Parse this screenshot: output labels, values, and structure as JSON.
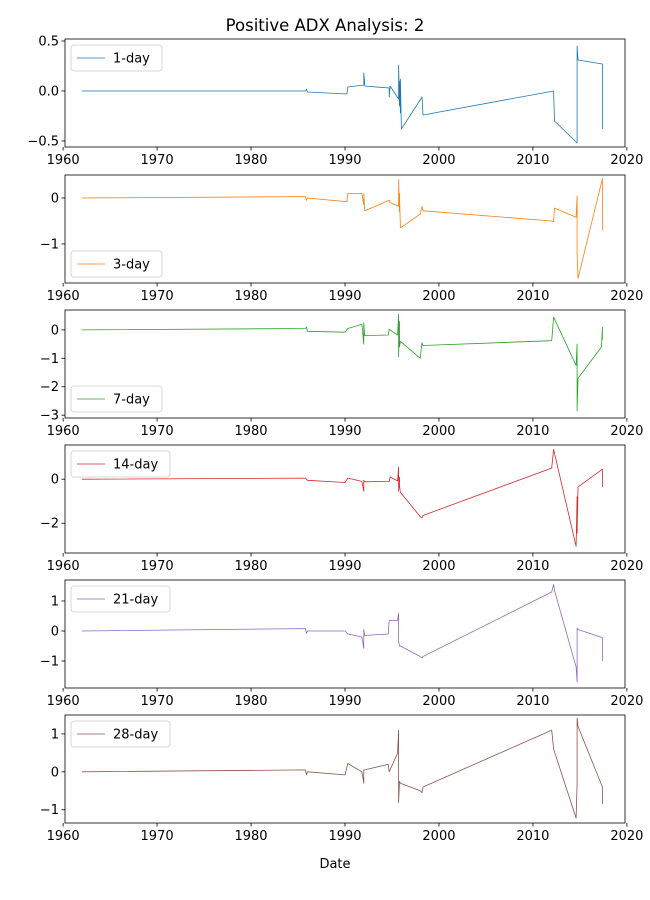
{
  "title": "Positive ADX Analysis: 2",
  "xlabel": "Date",
  "chart_data": [
    {
      "type": "line",
      "series": [
        {
          "name": "1-day",
          "color": "#1f77b4",
          "x": [
            1962.0,
            1985.8,
            1985.9,
            1986.0,
            1990.2,
            1990.3,
            1992.0,
            1992.0,
            1992.1,
            1992.1,
            1994.7,
            1994.7,
            1994.8,
            1995.7,
            1995.7,
            1995.8,
            1995.8,
            1995.9,
            1995.9,
            1996.0,
            1998.2,
            1998.3,
            2012.2,
            2012.3,
            2014.7,
            2014.7,
            2014.8,
            2017.4,
            2017.4
          ],
          "y": [
            0.0,
            0.0,
            0.02,
            -0.01,
            -0.03,
            0.04,
            0.06,
            0.18,
            0.08,
            0.05,
            0.03,
            -0.06,
            0.05,
            -0.08,
            0.26,
            -0.15,
            0.1,
            -0.22,
            0.12,
            -0.38,
            -0.06,
            -0.24,
            0.0,
            -0.3,
            -0.52,
            0.45,
            0.31,
            0.27,
            -0.38
          ]
        }
      ],
      "ylim": [
        -0.56,
        0.52
      ],
      "yticks": [
        0.5,
        0.0,
        -0.5
      ],
      "yticklabels": [
        "0.5",
        "0.0",
        "−0.5"
      ],
      "xlim": [
        1960.2,
        2019.8
      ],
      "xticks": [
        1960,
        1970,
        1980,
        1990,
        2000,
        2010,
        2020
      ],
      "xticklabels": [
        "1960",
        "1970",
        "1980",
        "1990",
        "2000",
        "2010",
        "2020"
      ],
      "legend_loc": "upper left"
    },
    {
      "type": "line",
      "series": [
        {
          "name": "3-day",
          "color": "#ff7f0e",
          "x": [
            1962.0,
            1985.8,
            1985.9,
            1986.0,
            1990.2,
            1990.3,
            1991.8,
            1992.0,
            1992.0,
            1992.1,
            1994.7,
            1994.8,
            1995.7,
            1995.7,
            1995.8,
            1995.8,
            1995.9,
            1998.0,
            1998.2,
            1998.3,
            2012.0,
            2012.2,
            2012.3,
            2014.6,
            2014.7,
            2014.7,
            2014.8,
            2017.4,
            2017.4
          ],
          "y": [
            0.0,
            0.03,
            -0.05,
            0.0,
            -0.08,
            0.1,
            0.1,
            -0.15,
            0.1,
            -0.28,
            -0.05,
            -0.1,
            -0.18,
            0.4,
            -0.3,
            0.1,
            -0.65,
            -0.35,
            -0.18,
            -0.28,
            -0.5,
            -0.52,
            -0.22,
            -0.42,
            0.05,
            -1.2,
            -1.75,
            0.42,
            -0.7
          ]
        }
      ],
      "ylim": [
        -1.85,
        0.5
      ],
      "yticks": [
        0,
        -1
      ],
      "yticklabels": [
        "0",
        "−1"
      ],
      "xlim": [
        1960.2,
        2019.8
      ],
      "xticks": [
        1960,
        1970,
        1980,
        1990,
        2000,
        2010,
        2020
      ],
      "xticklabels": [
        "1960",
        "1970",
        "1980",
        "1990",
        "2000",
        "2010",
        "2020"
      ],
      "legend_loc": "lower left"
    },
    {
      "type": "line",
      "series": [
        {
          "name": "7-day",
          "color": "#2ca02c",
          "x": [
            1962.0,
            1985.8,
            1985.9,
            1986.0,
            1990.0,
            1990.3,
            1991.8,
            1992.0,
            1992.0,
            1992.1,
            1994.6,
            1994.7,
            1995.6,
            1995.7,
            1995.7,
            1995.8,
            1995.8,
            1995.9,
            1998.0,
            1998.2,
            1998.3,
            2012.0,
            2012.2,
            2014.6,
            2014.7,
            2014.7,
            2014.8,
            2017.3,
            2017.4,
            2017.4
          ],
          "y": [
            0.0,
            0.05,
            0.1,
            -0.05,
            -0.08,
            0.05,
            0.2,
            -0.5,
            0.25,
            -0.2,
            -0.18,
            0.02,
            -0.18,
            0.55,
            -0.95,
            0.3,
            -0.6,
            -0.4,
            -1.0,
            -0.45,
            -0.55,
            -0.38,
            0.45,
            -1.25,
            -0.5,
            -2.85,
            -1.7,
            -0.6,
            0.1,
            -0.35
          ]
        }
      ],
      "ylim": [
        -3.1,
        0.7
      ],
      "yticks": [
        0,
        -1,
        -2,
        -3
      ],
      "yticklabels": [
        "0",
        "−1",
        "−2",
        "−3"
      ],
      "xlim": [
        1960.2,
        2019.8
      ],
      "xticks": [
        1960,
        1970,
        1980,
        1990,
        2000,
        2010,
        2020
      ],
      "xticklabels": [
        "1960",
        "1970",
        "1980",
        "1990",
        "2000",
        "2010",
        "2020"
      ],
      "legend_loc": "lower left"
    },
    {
      "type": "line",
      "series": [
        {
          "name": "14-day",
          "color": "#d62728",
          "x": [
            1962.0,
            1985.8,
            1985.9,
            1986.0,
            1990.0,
            1990.3,
            1991.8,
            1992.0,
            1992.0,
            1992.1,
            1994.7,
            1994.8,
            1995.6,
            1995.7,
            1995.7,
            1995.8,
            1995.8,
            1995.9,
            1998.0,
            1998.2,
            1998.3,
            2012.0,
            2012.2,
            2014.6,
            2014.7,
            2014.7,
            2014.8,
            2017.4,
            2017.4
          ],
          "y": [
            0.0,
            0.05,
            0.0,
            -0.05,
            -0.15,
            0.05,
            -0.1,
            -0.55,
            -0.05,
            -0.12,
            -0.1,
            0.1,
            -0.08,
            0.55,
            -0.55,
            0.1,
            -0.3,
            -0.6,
            -1.7,
            -1.75,
            -1.65,
            0.5,
            1.35,
            -3.05,
            -0.8,
            -2.45,
            -0.35,
            0.45,
            -0.35
          ]
        }
      ],
      "ylim": [
        -3.35,
        1.55
      ],
      "yticks": [
        0,
        -2
      ],
      "yticklabels": [
        "0",
        "−2"
      ],
      "xlim": [
        1960.2,
        2019.8
      ],
      "xticks": [
        1960,
        1970,
        1980,
        1990,
        2000,
        2010,
        2020
      ],
      "xticklabels": [
        "1960",
        "1970",
        "1980",
        "1990",
        "2000",
        "2010",
        "2020"
      ],
      "legend_loc": "upper left"
    },
    {
      "type": "line",
      "series": [
        {
          "name": "21-day",
          "color": "#9467bd",
          "x": [
            1962.0,
            1985.8,
            1985.9,
            1986.0,
            1990.0,
            1990.3,
            1991.8,
            1992.0,
            1992.0,
            1992.1,
            1994.6,
            1994.7,
            1995.6,
            1995.7,
            1995.7,
            1995.8,
            1995.9,
            1998.0,
            1998.2,
            1998.3,
            2012.0,
            2012.2,
            2012.3,
            2014.6,
            2014.7,
            2014.7,
            2014.8,
            2017.4,
            2017.4
          ],
          "y": [
            0.0,
            0.08,
            -0.08,
            0.0,
            0.0,
            -0.1,
            -0.2,
            -0.58,
            0.05,
            -0.15,
            -0.1,
            0.35,
            0.35,
            0.6,
            -0.35,
            -0.5,
            -0.5,
            -0.85,
            -0.9,
            -0.85,
            1.3,
            1.55,
            1.35,
            -1.2,
            -1.7,
            0.1,
            0.05,
            -0.22,
            -1.0
          ]
        }
      ],
      "ylim": [
        -1.9,
        1.7
      ],
      "yticks": [
        1,
        0,
        -1
      ],
      "yticklabels": [
        "1",
        "0",
        "−1"
      ],
      "xlim": [
        1960.2,
        2019.8
      ],
      "xticks": [
        1960,
        1970,
        1980,
        1990,
        2000,
        2010,
        2020
      ],
      "xticklabels": [
        "1960",
        "1970",
        "1980",
        "1990",
        "2000",
        "2010",
        "2020"
      ],
      "legend_loc": "upper left"
    },
    {
      "type": "line",
      "series": [
        {
          "name": "28-day",
          "color": "#8c564b",
          "x": [
            1962.0,
            1985.8,
            1985.9,
            1986.0,
            1990.0,
            1990.3,
            1991.8,
            1992.0,
            1992.0,
            1992.1,
            1994.6,
            1994.7,
            1995.6,
            1995.7,
            1995.7,
            1995.8,
            1995.8,
            1995.9,
            1998.0,
            1998.2,
            1998.3,
            2012.0,
            2012.2,
            2014.6,
            2014.7,
            2014.7,
            2014.8,
            2017.4,
            2017.4
          ],
          "y": [
            0.0,
            0.05,
            -0.08,
            0.0,
            -0.08,
            0.22,
            0.0,
            -0.3,
            0.05,
            0.05,
            0.2,
            0.0,
            0.5,
            1.1,
            -0.82,
            -0.25,
            -0.25,
            -0.3,
            -0.5,
            -0.55,
            -0.4,
            1.1,
            0.6,
            -1.22,
            -0.3,
            1.42,
            1.2,
            -0.4,
            -0.85
          ]
        }
      ],
      "ylim": [
        -1.35,
        1.5
      ],
      "yticks": [
        1,
        0,
        -1
      ],
      "yticklabels": [
        "1",
        "0",
        "−1"
      ],
      "xlim": [
        1960.2,
        2019.8
      ],
      "xticks": [
        1960,
        1970,
        1980,
        1990,
        2000,
        2010,
        2020
      ],
      "xticklabels": [
        "1960",
        "1970",
        "1980",
        "1990",
        "2000",
        "2010",
        "2020"
      ],
      "legend_loc": "upper left"
    }
  ]
}
